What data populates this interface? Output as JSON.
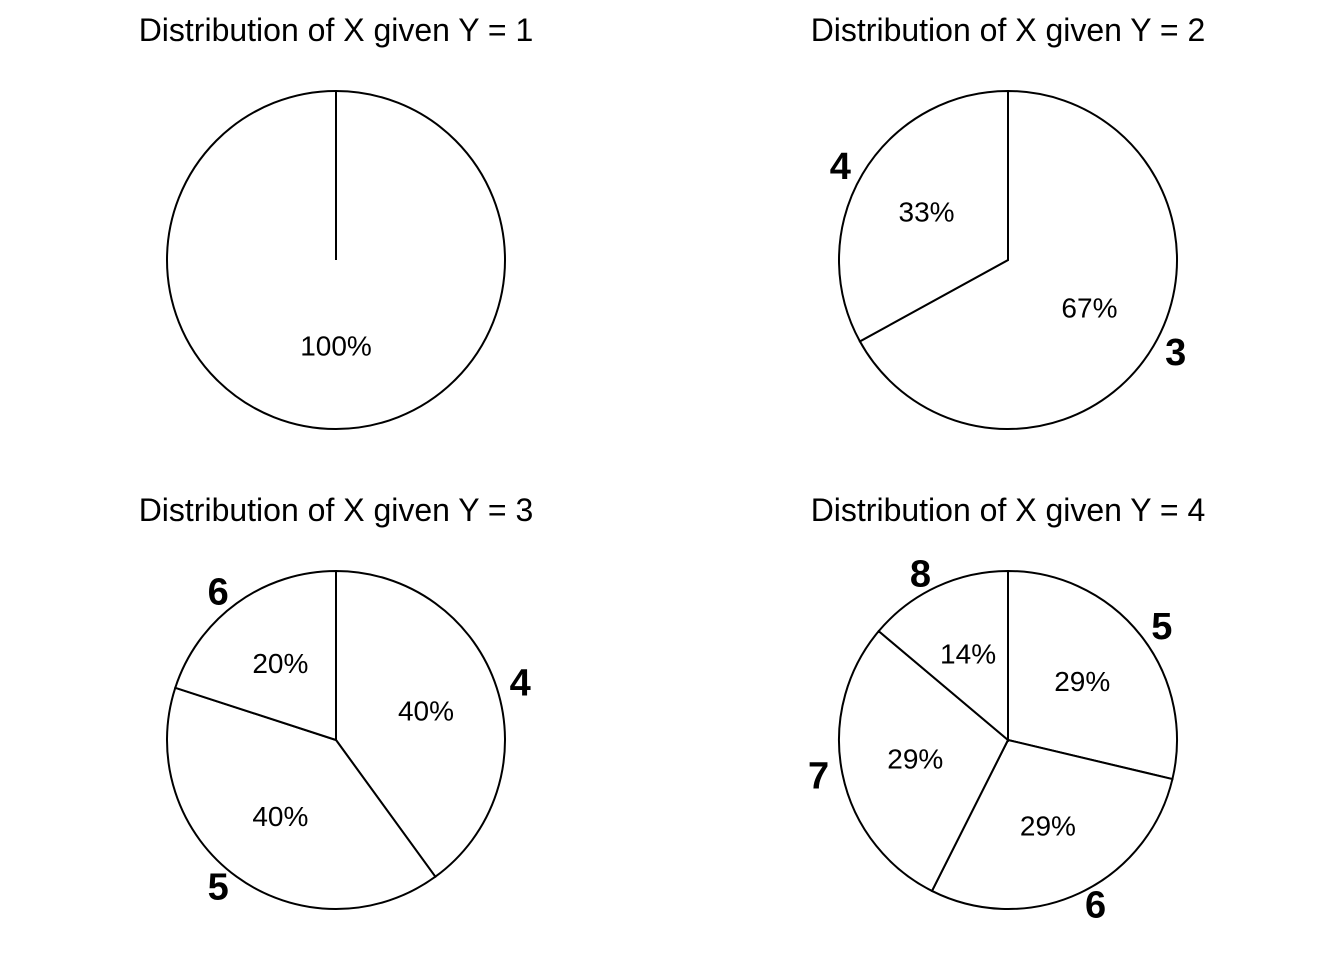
{
  "chart_data": [
    {
      "type": "pie",
      "title": "Distribution of X given Y = 1",
      "slices": [
        {
          "label": "",
          "percent_label": "100%",
          "value": 100
        }
      ]
    },
    {
      "type": "pie",
      "title": "Distribution of X given Y = 2",
      "slices": [
        {
          "label": "3",
          "percent_label": "67%",
          "value": 67
        },
        {
          "label": "4",
          "percent_label": "33%",
          "value": 33
        }
      ]
    },
    {
      "type": "pie",
      "title": "Distribution of X given Y = 3",
      "slices": [
        {
          "label": "4",
          "percent_label": "40%",
          "value": 40
        },
        {
          "label": "5",
          "percent_label": "40%",
          "value": 40
        },
        {
          "label": "6",
          "percent_label": "20%",
          "value": 20
        }
      ]
    },
    {
      "type": "pie",
      "title": "Distribution of X given Y = 4",
      "slices": [
        {
          "label": "5",
          "percent_label": "29%",
          "value": 29
        },
        {
          "label": "6",
          "percent_label": "29%",
          "value": 29
        },
        {
          "label": "7",
          "percent_label": "29%",
          "value": 29
        },
        {
          "label": "8",
          "percent_label": "14%",
          "value": 14
        }
      ]
    }
  ]
}
